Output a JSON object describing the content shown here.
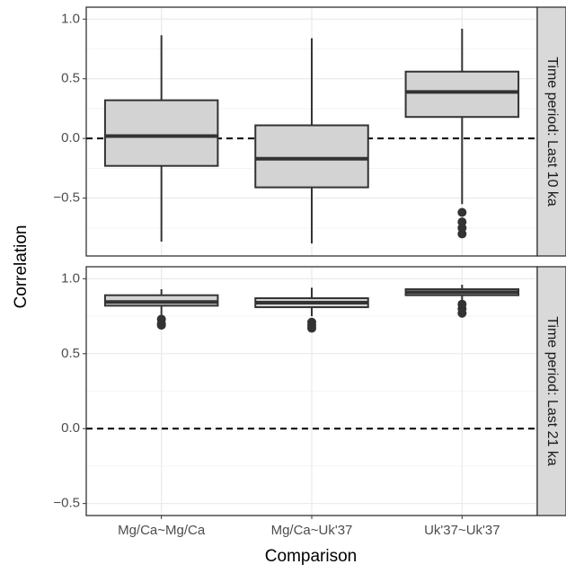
{
  "chart_data": {
    "type": "box",
    "xlabel": "Comparison",
    "ylabel": "Correlation",
    "categories": [
      "Mg/Ca~Mg/Ca",
      "Mg/Ca~Uk'37",
      "Uk'37~Uk'37"
    ],
    "box_color": "#d3d3d3",
    "line_color": "#333333",
    "grid": true,
    "reference_line": 0,
    "facets": [
      {
        "strip": "Time period: Last 10 ka",
        "ylim": [
          -0.985,
          1.1
        ],
        "yticks": [
          {
            "value": -0.5,
            "label": "−0.5"
          },
          {
            "value": 0,
            "label": "0.0"
          },
          {
            "value": 0.5,
            "label": "0.5"
          },
          {
            "value": 1,
            "label": "1.0"
          }
        ],
        "boxes": [
          {
            "whislo": -0.865,
            "q1": -0.23,
            "med": 0.02,
            "q3": 0.32,
            "whishi": 0.865,
            "fliers": []
          },
          {
            "whislo": -0.88,
            "q1": -0.41,
            "med": -0.17,
            "q3": 0.11,
            "whishi": 0.84,
            "fliers": []
          },
          {
            "whislo": -0.55,
            "q1": 0.18,
            "med": 0.39,
            "q3": 0.56,
            "whishi": 0.92,
            "fliers": [
              -0.62,
              -0.7,
              -0.75,
              -0.8
            ]
          }
        ]
      },
      {
        "strip": "Time period: Last 21 ka",
        "ylim": [
          -0.58,
          1.08
        ],
        "yticks": [
          {
            "value": -0.5,
            "label": "−0.5"
          },
          {
            "value": 0,
            "label": "0.0"
          },
          {
            "value": 0.5,
            "label": "0.5"
          },
          {
            "value": 1,
            "label": "1.0"
          }
        ],
        "boxes": [
          {
            "whislo": 0.76,
            "q1": 0.82,
            "med": 0.845,
            "q3": 0.89,
            "whishi": 0.93,
            "fliers": [
              0.73,
              0.7,
              0.69
            ]
          },
          {
            "whislo": 0.75,
            "q1": 0.81,
            "med": 0.84,
            "q3": 0.87,
            "whishi": 0.94,
            "fliers": [
              0.71,
              0.69,
              0.67
            ]
          },
          {
            "whislo": 0.85,
            "q1": 0.89,
            "med": 0.91,
            "q3": 0.93,
            "whishi": 0.96,
            "fliers": [
              0.83,
              0.8,
              0.77
            ]
          }
        ]
      }
    ]
  }
}
